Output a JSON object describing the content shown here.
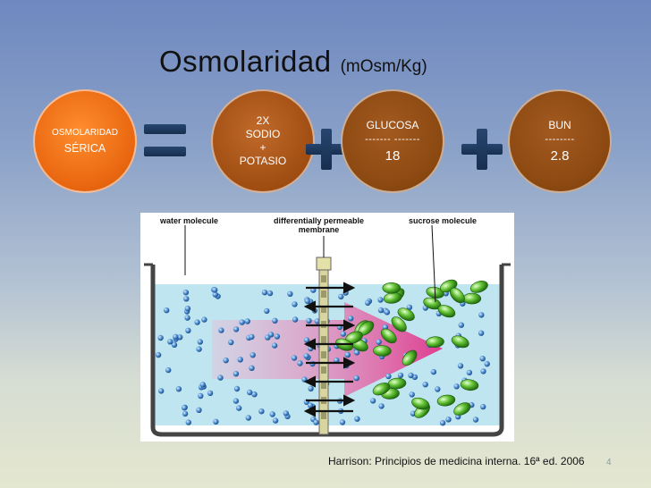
{
  "slide": {
    "title": "Osmolaridad",
    "title_unit": "(mOsm/Kg)",
    "caption": "Harrison: Principios de medicina interna. 16ª ed. 2006",
    "page_number": "4"
  },
  "formula": {
    "term1": {
      "line1": "OSMOLARIDAD",
      "line2": "SÉRICA"
    },
    "term2": {
      "line1": "2X",
      "line2": "SODIO",
      "line3": "+",
      "line4": "POTASIO"
    },
    "term3": {
      "name": "GLUCOSA",
      "divider": "------- -------",
      "value": "18"
    },
    "term4": {
      "name": "BUN",
      "divider": "--------",
      "value": "2.8"
    },
    "operators": [
      "equals-icon",
      "plus-icon",
      "plus-icon"
    ],
    "colors": {
      "orange": "#e8650f",
      "brown": "#8a4810",
      "operator": "#1f3a5f"
    }
  },
  "figure": {
    "label_water": "water molecule",
    "label_membrane_1": "differentially permeable",
    "label_membrane_2": "membrane",
    "label_sucrose": "sucrose molecule"
  }
}
